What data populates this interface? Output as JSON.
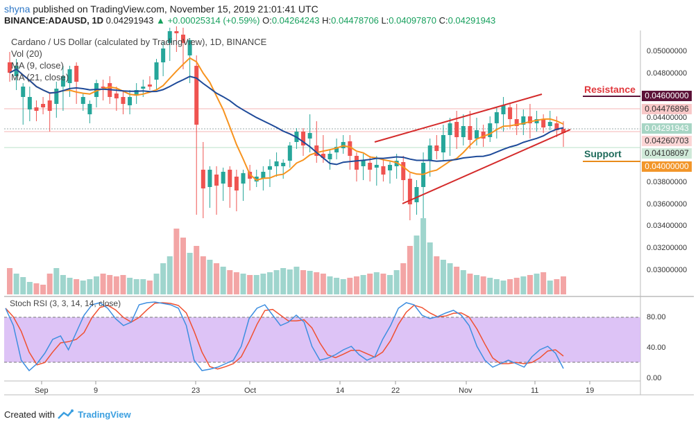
{
  "header": {
    "publisher": "shyna",
    "published_text": "published on TradingView.com, November 15, 2019 21:01:41 UTC",
    "symbol": "BINANCE:ADAUSD, 1D",
    "price": "0.04291943",
    "change": "+0.00025314 (+0.59%)",
    "ohlc": {
      "o_label": "O:",
      "o": "0.04264243",
      "h_label": "H:",
      "h": "0.04478706",
      "l_label": "L:",
      "l": "0.04097870",
      "c_label": "C:",
      "c": "0.04291943"
    }
  },
  "legend": {
    "title": "Cardano / US Dollar (calculated by TradingView), 1D, BINANCE",
    "vol": "Vol (20)",
    "ma9": "MA (9, close)",
    "ma21": "MA (21, close)"
  },
  "annotations": {
    "resistance": "Resistance",
    "support": "Support"
  },
  "price_axis": {
    "ticks": [
      "0.05000000",
      "0.04800000",
      "0.04400000",
      "0.03800000",
      "0.03600000",
      "0.03400000",
      "0.03200000",
      "0.03000000"
    ],
    "labels": {
      "resistance": "0.04600000",
      "level1": "0.04476896",
      "last": "0.04291943",
      "level2": "0.04260703",
      "level3": "0.04108097",
      "support": "0.04000000"
    }
  },
  "stoch_axis": {
    "ticks": [
      "80.00",
      "40.00",
      "0.00"
    ]
  },
  "stoch": {
    "label": "Stoch RSI (3, 3, 14, 14, close)"
  },
  "time_axis": {
    "ticks": [
      "Sep",
      "9",
      "23",
      "Oct",
      "14",
      "22",
      "Nov",
      "11",
      "19"
    ]
  },
  "footer": {
    "created_with": "Created with",
    "brand": "TradingView"
  },
  "colors": {
    "up": "#26a69a",
    "down": "#ef5350",
    "ma9": "#f7931e",
    "ma21": "#1e4a99",
    "resistance": "#e0363b",
    "support": "#e88a1a",
    "stoch_k": "#3d8ee0",
    "stoch_d": "#f05030",
    "stoch_band": "#d7b8f5"
  }
}
